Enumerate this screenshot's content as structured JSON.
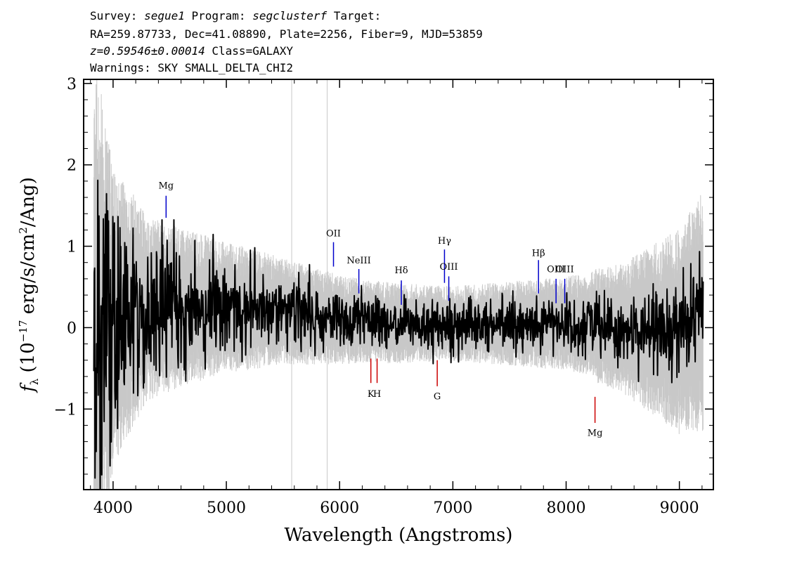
{
  "header": {
    "line1": [
      {
        "text": "Survey: ",
        "italic": false
      },
      {
        "text": "segue1",
        "italic": true
      },
      {
        "text": " Program: ",
        "italic": false
      },
      {
        "text": "segclusterf",
        "italic": true
      },
      {
        "text": " Target:",
        "italic": false
      }
    ],
    "line2": "RA=259.87733, Dec=41.08890, Plate=2256, Fiber=9, MJD=53859",
    "line3": [
      {
        "text": "z=0.59546±0.00014",
        "italic": true
      },
      {
        "text": " Class=GALAXY",
        "italic": false
      }
    ],
    "line4": "Warnings: SKY SMALL_DELTA_CHI2"
  },
  "chart_data": {
    "type": "line",
    "xlabel": "Wavelength (Angstroms)",
    "ylabel": {
      "symbol": "f",
      "symbol_sub": "λ",
      "prefix": "(10",
      "exp1": "−17",
      "middle": " erg/s/cm",
      "exp2": "2",
      "suffix": "/Ang)"
    },
    "xlim": [
      3740,
      9300
    ],
    "ylim": [
      -1.99,
      3.05
    ],
    "x_ticks": [
      {
        "value": 4000,
        "label": "4000"
      },
      {
        "value": 5000,
        "label": "5000"
      },
      {
        "value": 6000,
        "label": "6000"
      },
      {
        "value": 7000,
        "label": "7000"
      },
      {
        "value": 8000,
        "label": "8000"
      },
      {
        "value": 9000,
        "label": "9000"
      }
    ],
    "y_ticks": [
      {
        "value": -1,
        "label": "−1"
      },
      {
        "value": 0,
        "label": "0"
      },
      {
        "value": 1,
        "label": "1"
      },
      {
        "value": 2,
        "label": "2"
      },
      {
        "value": 3,
        "label": "3"
      }
    ],
    "spectrum_range": [
      3830,
      9210
    ],
    "series": [
      {
        "role": "error",
        "color": "#c8c8c8",
        "envelope": [
          {
            "x": 3830,
            "halfwidth": 3.0
          },
          {
            "x": 4000,
            "halfwidth": 1.6
          },
          {
            "x": 4300,
            "halfwidth": 1.0
          },
          {
            "x": 4600,
            "halfwidth": 0.85
          },
          {
            "x": 5000,
            "halfwidth": 0.7
          },
          {
            "x": 5600,
            "halfwidth": 0.55
          },
          {
            "x": 6200,
            "halfwidth": 0.45
          },
          {
            "x": 7000,
            "halfwidth": 0.4
          },
          {
            "x": 7500,
            "halfwidth": 0.45
          },
          {
            "x": 8000,
            "halfwidth": 0.5
          },
          {
            "x": 8500,
            "halfwidth": 0.7
          },
          {
            "x": 9000,
            "halfwidth": 1.1
          },
          {
            "x": 9210,
            "halfwidth": 1.3
          }
        ]
      },
      {
        "role": "flux",
        "color": "#000000",
        "trend": [
          {
            "x": 3830,
            "y": 0.0
          },
          {
            "x": 4100,
            "y": 0.2
          },
          {
            "x": 4500,
            "y": 0.25
          },
          {
            "x": 5000,
            "y": 0.25
          },
          {
            "x": 5500,
            "y": 0.2
          },
          {
            "x": 6000,
            "y": 0.1
          },
          {
            "x": 6500,
            "y": 0.05
          },
          {
            "x": 7000,
            "y": 0.05
          },
          {
            "x": 7500,
            "y": 0.05
          },
          {
            "x": 8000,
            "y": 0.05
          },
          {
            "x": 8500,
            "y": 0.0
          },
          {
            "x": 9000,
            "y": -0.05
          },
          {
            "x": 9210,
            "y": 0.2
          }
        ],
        "noise": [
          {
            "x": 3830,
            "sigma": 1.2
          },
          {
            "x": 4100,
            "sigma": 0.6
          },
          {
            "x": 4500,
            "sigma": 0.35
          },
          {
            "x": 5500,
            "sigma": 0.22
          },
          {
            "x": 6500,
            "sigma": 0.16
          },
          {
            "x": 7500,
            "sigma": 0.15
          },
          {
            "x": 8500,
            "sigma": 0.2
          },
          {
            "x": 9210,
            "sigma": 0.35
          }
        ]
      }
    ],
    "sky_lines": [
      5577,
      5890
    ],
    "emission_lines": [
      {
        "label": "Mg",
        "x": 4468,
        "y0": 1.35,
        "y1": 1.62,
        "label_y": 1.71,
        "color": "#0000cc"
      },
      {
        "label": "OII",
        "x": 5946,
        "y0": 0.75,
        "y1": 1.05,
        "label_y": 1.12,
        "color": "#0000cc"
      },
      {
        "label": "NeIII",
        "x": 6170,
        "y0": 0.42,
        "y1": 0.72,
        "label_y": 0.79,
        "color": "#0000cc"
      },
      {
        "label": "Hδ",
        "x": 6545,
        "y0": 0.28,
        "y1": 0.58,
        "label_y": 0.67,
        "color": "#0000cc"
      },
      {
        "label": "Hγ",
        "x": 6926,
        "y0": 0.55,
        "y1": 0.96,
        "label_y": 1.03,
        "color": "#0000cc"
      },
      {
        "label": "OIII",
        "x": 6964,
        "y0": 0.33,
        "y1": 0.63,
        "label_y": 0.71,
        "color": "#0000cc"
      },
      {
        "label": "Hβ",
        "x": 7756,
        "y0": 0.42,
        "y1": 0.83,
        "label_y": 0.88,
        "color": "#0000cc"
      },
      {
        "label": "OIII",
        "x": 7911,
        "y0": 0.3,
        "y1": 0.6,
        "label_y": 0.68,
        "color": "#0000cc"
      },
      {
        "label": "OIII",
        "x": 7988,
        "y0": 0.3,
        "y1": 0.6,
        "label_y": 0.68,
        "color": "#0000cc"
      }
    ],
    "absorption_lines": [
      {
        "label": "K",
        "x": 6276,
        "y0": -0.38,
        "y1": -0.68,
        "label_y": -0.85,
        "color": "#cc0000"
      },
      {
        "label": "H",
        "x": 6331,
        "y0": -0.38,
        "y1": -0.68,
        "label_y": -0.85,
        "color": "#cc0000"
      },
      {
        "label": "G",
        "x": 6862,
        "y0": -0.4,
        "y1": -0.72,
        "label_y": -0.88,
        "color": "#cc0000"
      },
      {
        "label": "Mg",
        "x": 8255,
        "y0": -0.85,
        "y1": -1.17,
        "label_y": -1.33,
        "color": "#cc0000"
      }
    ],
    "noise_seed": 53859
  }
}
